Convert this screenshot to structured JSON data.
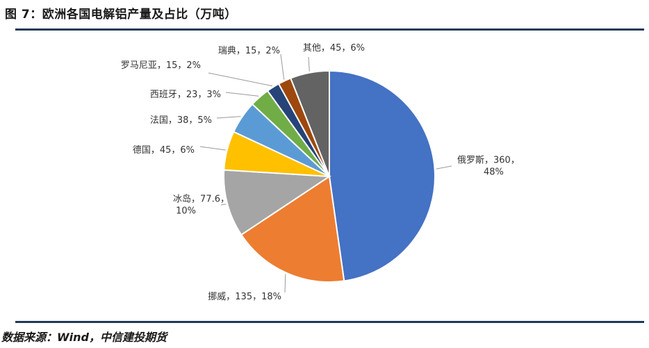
{
  "figure": {
    "title": "图 7：欧洲各国电解铝产量及占比（万吨）",
    "source": "数据来源：Wind，中信建投期货"
  },
  "chart_data": {
    "type": "pie",
    "title": "欧洲各国电解铝产量及占比（万吨）",
    "start_angle_deg": 0,
    "direction": "clockwise",
    "slices": [
      {
        "name": "俄罗斯",
        "value": 360,
        "percent": "48%",
        "label_lines": [
          "俄罗斯，360，",
          "48%"
        ],
        "color": "#4472C4"
      },
      {
        "name": "挪威",
        "value": 135,
        "percent": "18%",
        "label_lines": [
          "挪威，135，18%"
        ],
        "color": "#ED7D31"
      },
      {
        "name": "冰岛",
        "value": 77.6,
        "percent": "10%",
        "label_lines": [
          "冰岛，77.6，",
          "10%"
        ],
        "color": "#A5A5A5"
      },
      {
        "name": "德国",
        "value": 45,
        "percent": "6%",
        "label_lines": [
          "德国，45，6%"
        ],
        "color": "#FFC000"
      },
      {
        "name": "法国",
        "value": 38,
        "percent": "5%",
        "label_lines": [
          "法国，38，5%"
        ],
        "color": "#5B9BD5"
      },
      {
        "name": "西班牙",
        "value": 23,
        "percent": "3%",
        "label_lines": [
          "西班牙，23，3%"
        ],
        "color": "#70AD47"
      },
      {
        "name": "罗马尼亚",
        "value": 15,
        "percent": "2%",
        "label_lines": [
          "罗马尼亚，15，2%"
        ],
        "color": "#264478"
      },
      {
        "name": "瑞典",
        "value": 15,
        "percent": "2%",
        "label_lines": [
          "瑞典，15，2%"
        ],
        "color": "#9E480E"
      },
      {
        "name": "其他",
        "value": 45,
        "percent": "6%",
        "label_lines": [
          "其他，45，6%"
        ],
        "color": "#636363"
      }
    ]
  }
}
